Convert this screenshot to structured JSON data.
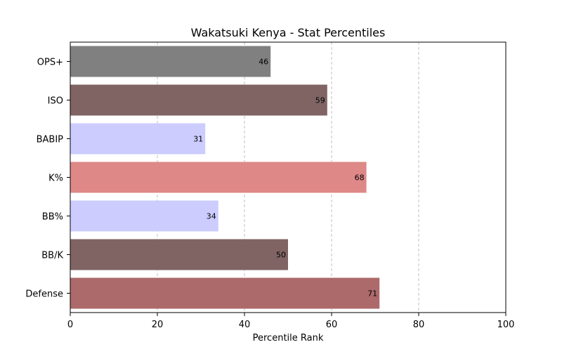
{
  "chart_data": {
    "type": "bar",
    "orientation": "horizontal",
    "title": "Wakatsuki Kenya - Stat Percentiles",
    "xlabel": "Percentile Rank",
    "ylabel": "",
    "xlim": [
      0,
      100
    ],
    "xticks": [
      "0",
      "20",
      "40",
      "60",
      "80",
      "100"
    ],
    "grid": "x-dashed",
    "categories": [
      "OPS+",
      "ISO",
      "BABIP",
      "K%",
      "BB%",
      "BB/K",
      "Defense"
    ],
    "values": [
      46,
      59,
      31,
      68,
      34,
      50,
      71
    ],
    "bar_colors": [
      "#808080",
      "#806464",
      "#ccccff",
      "#de8888",
      "#ccccff",
      "#806464",
      "#ad6a6a"
    ],
    "data_labels": [
      "46",
      "59",
      "31",
      "68",
      "34",
      "50",
      "71"
    ]
  }
}
